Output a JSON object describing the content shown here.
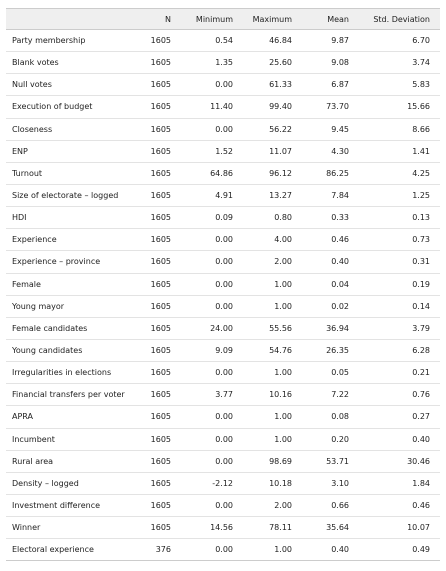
{
  "table": {
    "headers": [
      "",
      "N",
      "Minimum",
      "Maximum",
      "Mean",
      "Std. Deviation"
    ],
    "rows": [
      [
        "Party membership",
        "1605",
        "0.54",
        "46.84",
        "9.87",
        "6.70"
      ],
      [
        "Blank votes",
        "1605",
        "1.35",
        "25.60",
        "9.08",
        "3.74"
      ],
      [
        "Null votes",
        "1605",
        "0.00",
        "61.33",
        "6.87",
        "5.83"
      ],
      [
        "Execution of budget",
        "1605",
        "11.40",
        "99.40",
        "73.70",
        "15.66"
      ],
      [
        "Closeness",
        "1605",
        "0.00",
        "56.22",
        "9.45",
        "8.66"
      ],
      [
        "ENP",
        "1605",
        "1.52",
        "11.07",
        "4.30",
        "1.41"
      ],
      [
        "Turnout",
        "1605",
        "64.86",
        "96.12",
        "86.25",
        "4.25"
      ],
      [
        "Size of electorate – logged",
        "1605",
        "4.91",
        "13.27",
        "7.84",
        "1.25"
      ],
      [
        "HDI",
        "1605",
        "0.09",
        "0.80",
        "0.33",
        "0.13"
      ],
      [
        "Experience",
        "1605",
        "0.00",
        "4.00",
        "0.46",
        "0.73"
      ],
      [
        "Experience – province",
        "1605",
        "0.00",
        "2.00",
        "0.40",
        "0.31"
      ],
      [
        "Female",
        "1605",
        "0.00",
        "1.00",
        "0.04",
        "0.19"
      ],
      [
        "Young mayor",
        "1605",
        "0.00",
        "1.00",
        "0.02",
        "0.14"
      ],
      [
        "Female candidates",
        "1605",
        "24.00",
        "55.56",
        "36.94",
        "3.79"
      ],
      [
        "Young candidates",
        "1605",
        "9.09",
        "54.76",
        "26.35",
        "6.28"
      ],
      [
        "Irregularities in elections",
        "1605",
        "0.00",
        "1.00",
        "0.05",
        "0.21"
      ],
      [
        "Financial transfers per voter",
        "1605",
        "3.77",
        "10.16",
        "7.22",
        "0.76"
      ],
      [
        "APRA",
        "1605",
        "0.00",
        "1.00",
        "0.08",
        "0.27"
      ],
      [
        "Incumbent",
        "1605",
        "0.00",
        "1.00",
        "0.20",
        "0.40"
      ],
      [
        "Rural area",
        "1605",
        "0.00",
        "98.69",
        "53.71",
        "30.46"
      ],
      [
        "Density – logged",
        "1605",
        "-2.12",
        "10.18",
        "3.10",
        "1.84"
      ],
      [
        "Investment difference",
        "1605",
        "0.00",
        "2.00",
        "0.66",
        "0.46"
      ],
      [
        "Winner",
        "1605",
        "14.56",
        "78.11",
        "35.64",
        "10.07"
      ],
      [
        "Electoral experience",
        "376",
        "0.00",
        "1.00",
        "0.40",
        "0.49"
      ]
    ]
  }
}
